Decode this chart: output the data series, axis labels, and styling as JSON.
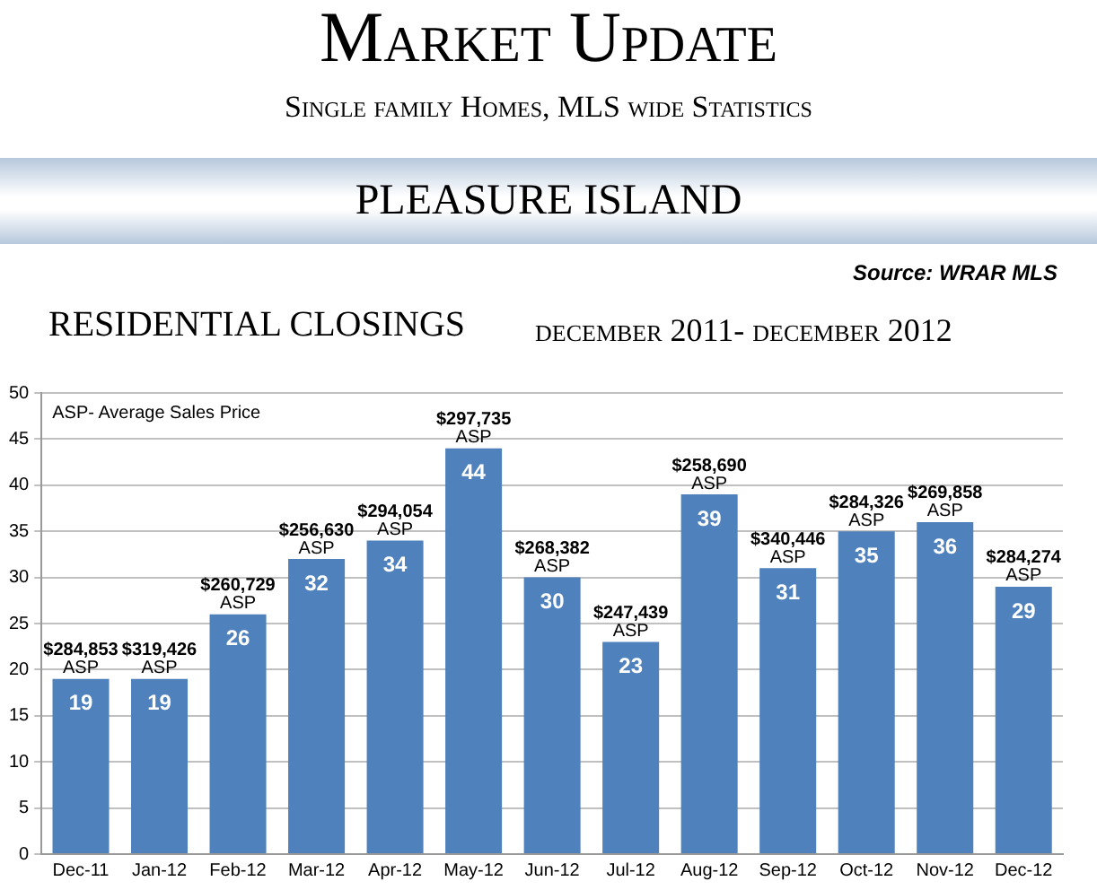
{
  "chart_data": {
    "type": "bar",
    "title": "Market Update",
    "subtitle": "Single family Homes, MLS wide Statistics",
    "categories": [
      "Dec-11",
      "Jan-12",
      "Feb-12",
      "Mar-12",
      "Apr-12",
      "May-12",
      "Jun-12",
      "Jul-12",
      "Aug-12",
      "Sep-12",
      "Oct-12",
      "Nov-12",
      "Dec-12"
    ],
    "values": [
      19,
      19,
      26,
      32,
      34,
      44,
      30,
      23,
      39,
      31,
      35,
      36,
      29
    ],
    "color": "#4f81bd",
    "ylim": [
      0,
      50
    ],
    "yticks": [
      0,
      5,
      10,
      15,
      20,
      25,
      30,
      35,
      40,
      45,
      50
    ],
    "grid": "y",
    "data_labels": true,
    "annotations": [
      "PLEASURE ISLAND",
      "Source: WRAR MLS",
      "RESIDENTIAL CLOSINGS",
      "december 2011- december 2012",
      "ASP- Average Sales Price",
      {
        "text": "$284,853 ASP",
        "x": "Dec-11",
        "y": 19
      },
      {
        "text": "$319,426 ASP",
        "x": "Jan-12",
        "y": 19
      },
      {
        "text": "$260,729 ASP",
        "x": "Feb-12",
        "y": 26
      },
      {
        "text": "$256,630 ASP",
        "x": "Mar-12",
        "y": 32
      },
      {
        "text": "$294,054 ASP",
        "x": "Apr-12",
        "y": 34
      },
      {
        "text": "$297,735 ASP",
        "x": "May-12",
        "y": 44
      },
      {
        "text": "$268,382 ASP",
        "x": "Jun-12",
        "y": 30
      },
      {
        "text": "$247,439 ASP",
        "x": "Jul-12",
        "y": 23
      },
      {
        "text": "$258,690 ASP",
        "x": "Aug-12",
        "y": 39
      },
      {
        "text": "$340,446 ASP",
        "x": "Sep-12",
        "y": 31
      },
      {
        "text": "$284,326 ASP",
        "x": "Oct-12",
        "y": 35
      },
      {
        "text": "$269,858 ASP",
        "x": "Nov-12",
        "y": 36
      },
      {
        "text": "$284,274 ASP",
        "x": "Dec-12",
        "y": 29
      }
    ]
  }
}
